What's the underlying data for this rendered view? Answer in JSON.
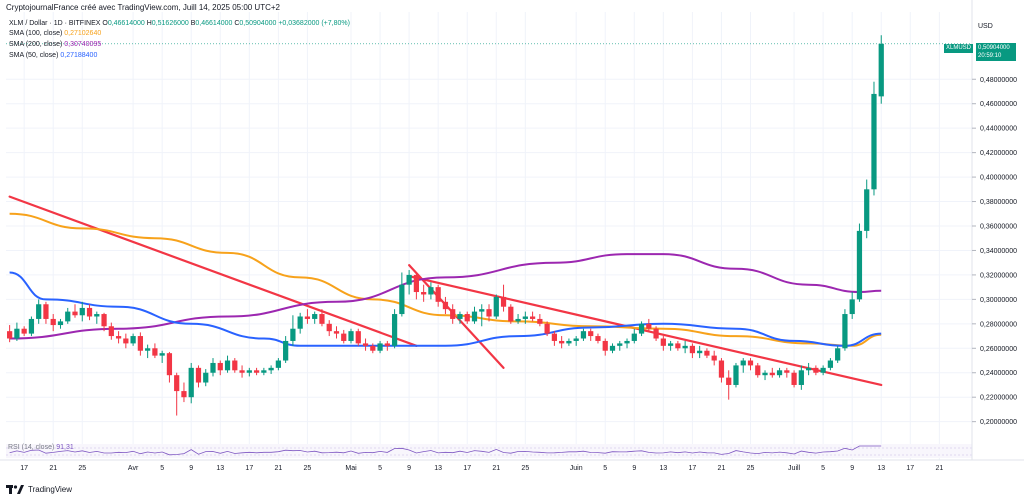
{
  "header": {
    "attribution": "CryptojournalFrance créé avec TradingView.com, Juill 14, 2025 05:00 UTC+2",
    "symbol_line": "XLM / Dollar · 1D · BITFINEX",
    "ohlc": [
      {
        "label": "O",
        "value": "0,46614000"
      },
      {
        "label": "H",
        "value": "0,51626000"
      },
      {
        "label": "B",
        "value": "0,46614000"
      },
      {
        "label": "C",
        "value": "0,50904000"
      },
      {
        "label": "",
        "value": "+0,03682000 (+7,80%)"
      }
    ]
  },
  "indicators": [
    {
      "label": "SMA (100, close)",
      "value": "0,27102640",
      "color": "#f7a21b"
    },
    {
      "label": "SMA (200, close)",
      "value": "0,30740095",
      "color": "#9c27b0"
    },
    {
      "label": "SMA (50, close)",
      "value": "0,27188400",
      "color": "#2962ff"
    }
  ],
  "rsi": {
    "label": "RSI (14, close)",
    "value": "91,31"
  },
  "price_axis": {
    "currency": "USD",
    "symbol_badge": "XLMUSD",
    "last_price": "0,50904000",
    "countdown": "20:59:10"
  },
  "branding": {
    "logo_text": "TradingView"
  },
  "colors": {
    "up": "#089981",
    "down": "#f23645",
    "trendline": "#f23645",
    "grid": "#f0f3fa"
  },
  "chart_data": {
    "type": "candlestick",
    "y_ticks": [
      "0,20000000",
      "0,22000000",
      "0,24000000",
      "0,26000000",
      "0,28000000",
      "0,30000000",
      "0,32000000",
      "0,34000000",
      "0,36000000",
      "0,38000000",
      "0,40000000",
      "0,42000000",
      "0,44000000",
      "0,46000000",
      "0,48000000"
    ],
    "ylim": [
      0.185,
      0.535
    ],
    "x_ticks": [
      "17",
      "21",
      "25",
      "Avr",
      "5",
      "9",
      "13",
      "17",
      "21",
      "25",
      "Mai",
      "5",
      "9",
      "13",
      "17",
      "21",
      "25",
      "Juin",
      "5",
      "9",
      "13",
      "17",
      "21",
      "25",
      "Juill",
      "5",
      "9",
      "13",
      "17",
      "21"
    ],
    "x_range": [
      "2025-03-15",
      "2025-07-23"
    ],
    "candles": [
      [
        "2025-03-15",
        0.274,
        0.279,
        0.265,
        0.268
      ],
      [
        "2025-03-16",
        0.268,
        0.281,
        0.266,
        0.276
      ],
      [
        "2025-03-17",
        0.276,
        0.278,
        0.27,
        0.272
      ],
      [
        "2025-03-18",
        0.272,
        0.286,
        0.27,
        0.284
      ],
      [
        "2025-03-19",
        0.284,
        0.3,
        0.28,
        0.296
      ],
      [
        "2025-03-20",
        0.296,
        0.298,
        0.28,
        0.284
      ],
      [
        "2025-03-21",
        0.284,
        0.288,
        0.274,
        0.279
      ],
      [
        "2025-03-22",
        0.279,
        0.284,
        0.276,
        0.282
      ],
      [
        "2025-03-23",
        0.282,
        0.293,
        0.28,
        0.29
      ],
      [
        "2025-03-24",
        0.29,
        0.296,
        0.285,
        0.287
      ],
      [
        "2025-03-25",
        0.287,
        0.298,
        0.282,
        0.293
      ],
      [
        "2025-03-26",
        0.293,
        0.296,
        0.283,
        0.286
      ],
      [
        "2025-03-27",
        0.286,
        0.29,
        0.28,
        0.288
      ],
      [
        "2025-03-28",
        0.288,
        0.289,
        0.274,
        0.278
      ],
      [
        "2025-03-29",
        0.278,
        0.281,
        0.267,
        0.27
      ],
      [
        "2025-03-30",
        0.27,
        0.274,
        0.264,
        0.268
      ],
      [
        "2025-03-31",
        0.268,
        0.272,
        0.26,
        0.264
      ],
      [
        "2025-04-01",
        0.264,
        0.272,
        0.262,
        0.27
      ],
      [
        "2025-04-02",
        0.27,
        0.273,
        0.254,
        0.258
      ],
      [
        "2025-04-03",
        0.258,
        0.263,
        0.252,
        0.26
      ],
      [
        "2025-04-04",
        0.26,
        0.264,
        0.252,
        0.254
      ],
      [
        "2025-04-05",
        0.254,
        0.258,
        0.248,
        0.256
      ],
      [
        "2025-04-06",
        0.256,
        0.257,
        0.232,
        0.238
      ],
      [
        "2025-04-07",
        0.238,
        0.24,
        0.205,
        0.225
      ],
      [
        "2025-04-08",
        0.225,
        0.232,
        0.216,
        0.22
      ],
      [
        "2025-04-09",
        0.22,
        0.248,
        0.215,
        0.244
      ],
      [
        "2025-04-10",
        0.244,
        0.246,
        0.228,
        0.232
      ],
      [
        "2025-04-11",
        0.232,
        0.243,
        0.229,
        0.24
      ],
      [
        "2025-04-12",
        0.24,
        0.252,
        0.237,
        0.248
      ],
      [
        "2025-04-13",
        0.248,
        0.25,
        0.238,
        0.242
      ],
      [
        "2025-04-14",
        0.242,
        0.254,
        0.24,
        0.25
      ],
      [
        "2025-04-15",
        0.25,
        0.252,
        0.24,
        0.242
      ],
      [
        "2025-04-16",
        0.242,
        0.246,
        0.236,
        0.24
      ],
      [
        "2025-04-17",
        0.24,
        0.244,
        0.237,
        0.242
      ],
      [
        "2025-04-18",
        0.242,
        0.244,
        0.238,
        0.24
      ],
      [
        "2025-04-19",
        0.24,
        0.244,
        0.238,
        0.242
      ],
      [
        "2025-04-20",
        0.242,
        0.246,
        0.239,
        0.244
      ],
      [
        "2025-04-21",
        0.244,
        0.252,
        0.242,
        0.25
      ],
      [
        "2025-04-22",
        0.25,
        0.27,
        0.248,
        0.266
      ],
      [
        "2025-04-23",
        0.266,
        0.287,
        0.262,
        0.276
      ],
      [
        "2025-04-24",
        0.276,
        0.289,
        0.272,
        0.286
      ],
      [
        "2025-04-25",
        0.286,
        0.292,
        0.28,
        0.284
      ],
      [
        "2025-04-26",
        0.284,
        0.29,
        0.28,
        0.288
      ],
      [
        "2025-04-27",
        0.288,
        0.292,
        0.278,
        0.28
      ],
      [
        "2025-04-28",
        0.28,
        0.283,
        0.27,
        0.274
      ],
      [
        "2025-04-29",
        0.274,
        0.278,
        0.268,
        0.272
      ],
      [
        "2025-04-30",
        0.272,
        0.275,
        0.264,
        0.266
      ],
      [
        "2025-05-01",
        0.266,
        0.276,
        0.264,
        0.274
      ],
      [
        "2025-05-02",
        0.274,
        0.276,
        0.262,
        0.264
      ],
      [
        "2025-05-03",
        0.264,
        0.268,
        0.258,
        0.262
      ],
      [
        "2025-05-04",
        0.262,
        0.264,
        0.256,
        0.258
      ],
      [
        "2025-05-05",
        0.258,
        0.266,
        0.256,
        0.264
      ],
      [
        "2025-05-06",
        0.264,
        0.266,
        0.258,
        0.262
      ],
      [
        "2025-05-07",
        0.262,
        0.292,
        0.26,
        0.288
      ],
      [
        "2025-05-08",
        0.288,
        0.322,
        0.286,
        0.312
      ],
      [
        "2025-05-09",
        0.312,
        0.324,
        0.304,
        0.32
      ],
      [
        "2025-05-10",
        0.32,
        0.322,
        0.3,
        0.306
      ],
      [
        "2025-05-11",
        0.306,
        0.312,
        0.298,
        0.304
      ],
      [
        "2025-05-12",
        0.304,
        0.314,
        0.3,
        0.31
      ],
      [
        "2025-05-13",
        0.31,
        0.312,
        0.294,
        0.298
      ],
      [
        "2025-05-14",
        0.298,
        0.302,
        0.288,
        0.292
      ],
      [
        "2025-05-15",
        0.292,
        0.296,
        0.28,
        0.284
      ],
      [
        "2025-05-16",
        0.284,
        0.29,
        0.28,
        0.288
      ],
      [
        "2025-05-17",
        0.288,
        0.29,
        0.28,
        0.282
      ],
      [
        "2025-05-18",
        0.282,
        0.294,
        0.28,
        0.29
      ],
      [
        "2025-05-19",
        0.29,
        0.296,
        0.278,
        0.292
      ],
      [
        "2025-05-20",
        0.292,
        0.296,
        0.282,
        0.286
      ],
      [
        "2025-05-21",
        0.286,
        0.304,
        0.284,
        0.302
      ],
      [
        "2025-05-22",
        0.302,
        0.312,
        0.29,
        0.294
      ],
      [
        "2025-05-23",
        0.294,
        0.296,
        0.28,
        0.282
      ],
      [
        "2025-05-24",
        0.282,
        0.288,
        0.28,
        0.284
      ],
      [
        "2025-05-25",
        0.284,
        0.29,
        0.28,
        0.286
      ],
      [
        "2025-05-26",
        0.286,
        0.29,
        0.282,
        0.284
      ],
      [
        "2025-05-27",
        0.284,
        0.288,
        0.278,
        0.28
      ],
      [
        "2025-05-28",
        0.28,
        0.282,
        0.27,
        0.272
      ],
      [
        "2025-05-29",
        0.272,
        0.274,
        0.262,
        0.266
      ],
      [
        "2025-05-30",
        0.266,
        0.27,
        0.26,
        0.264
      ],
      [
        "2025-05-31",
        0.264,
        0.268,
        0.262,
        0.266
      ],
      [
        "2025-06-01",
        0.266,
        0.27,
        0.262,
        0.268
      ],
      [
        "2025-06-02",
        0.268,
        0.276,
        0.266,
        0.274
      ],
      [
        "2025-06-03",
        0.274,
        0.276,
        0.266,
        0.27
      ],
      [
        "2025-06-04",
        0.27,
        0.272,
        0.264,
        0.266
      ],
      [
        "2025-06-05",
        0.266,
        0.268,
        0.254,
        0.258
      ],
      [
        "2025-06-06",
        0.258,
        0.264,
        0.256,
        0.262
      ],
      [
        "2025-06-07",
        0.262,
        0.266,
        0.258,
        0.264
      ],
      [
        "2025-06-08",
        0.264,
        0.268,
        0.26,
        0.266
      ],
      [
        "2025-06-09",
        0.266,
        0.276,
        0.264,
        0.272
      ],
      [
        "2025-06-10",
        0.272,
        0.282,
        0.27,
        0.28
      ],
      [
        "2025-06-11",
        0.28,
        0.284,
        0.274,
        0.276
      ],
      [
        "2025-06-12",
        0.276,
        0.278,
        0.266,
        0.268
      ],
      [
        "2025-06-13",
        0.268,
        0.27,
        0.258,
        0.262
      ],
      [
        "2025-06-14",
        0.262,
        0.266,
        0.258,
        0.264
      ],
      [
        "2025-06-15",
        0.264,
        0.266,
        0.258,
        0.26
      ],
      [
        "2025-06-16",
        0.26,
        0.266,
        0.256,
        0.262
      ],
      [
        "2025-06-17",
        0.262,
        0.264,
        0.252,
        0.256
      ],
      [
        "2025-06-18",
        0.256,
        0.262,
        0.252,
        0.258
      ],
      [
        "2025-06-19",
        0.258,
        0.26,
        0.252,
        0.254
      ],
      [
        "2025-06-20",
        0.254,
        0.258,
        0.246,
        0.25
      ],
      [
        "2025-06-21",
        0.25,
        0.252,
        0.232,
        0.236
      ],
      [
        "2025-06-22",
        0.236,
        0.242,
        0.218,
        0.23
      ],
      [
        "2025-06-23",
        0.23,
        0.248,
        0.228,
        0.246
      ],
      [
        "2025-06-24",
        0.246,
        0.252,
        0.24,
        0.25
      ],
      [
        "2025-06-25",
        0.25,
        0.252,
        0.242,
        0.246
      ],
      [
        "2025-06-26",
        0.246,
        0.248,
        0.236,
        0.238
      ],
      [
        "2025-06-27",
        0.238,
        0.242,
        0.234,
        0.24
      ],
      [
        "2025-06-28",
        0.24,
        0.244,
        0.236,
        0.238
      ],
      [
        "2025-06-29",
        0.238,
        0.244,
        0.236,
        0.242
      ],
      [
        "2025-06-30",
        0.242,
        0.244,
        0.236,
        0.24
      ],
      [
        "2025-07-01",
        0.24,
        0.242,
        0.228,
        0.23
      ],
      [
        "2025-07-02",
        0.23,
        0.246,
        0.226,
        0.242
      ],
      [
        "2025-07-03",
        0.242,
        0.248,
        0.238,
        0.244
      ],
      [
        "2025-07-04",
        0.244,
        0.246,
        0.238,
        0.24
      ],
      [
        "2025-07-05",
        0.24,
        0.246,
        0.238,
        0.244
      ],
      [
        "2025-07-06",
        0.244,
        0.252,
        0.242,
        0.25
      ],
      [
        "2025-07-07",
        0.25,
        0.262,
        0.248,
        0.26
      ],
      [
        "2025-07-08",
        0.26,
        0.292,
        0.258,
        0.288
      ],
      [
        "2025-07-09",
        0.288,
        0.306,
        0.284,
        0.3
      ],
      [
        "2025-07-10",
        0.3,
        0.362,
        0.298,
        0.356
      ],
      [
        "2025-07-11",
        0.356,
        0.398,
        0.35,
        0.39
      ],
      [
        "2025-07-12",
        0.39,
        0.478,
        0.385,
        0.468
      ],
      [
        "2025-07-13",
        0.466,
        0.516,
        0.46,
        0.509
      ]
    ],
    "sma_series": [
      {
        "name": "SMA (100, close)",
        "color": "#f7a21b",
        "points": [
          [
            "2025-03-15",
            0.37
          ],
          [
            "2025-03-25",
            0.358
          ],
          [
            "2025-04-04",
            0.35
          ],
          [
            "2025-04-14",
            0.338
          ],
          [
            "2025-04-24",
            0.318
          ],
          [
            "2025-05-04",
            0.3
          ],
          [
            "2025-05-14",
            0.287
          ],
          [
            "2025-05-24",
            0.282
          ],
          [
            "2025-06-03",
            0.278
          ],
          [
            "2025-06-13",
            0.276
          ],
          [
            "2025-06-23",
            0.27
          ],
          [
            "2025-07-03",
            0.264
          ],
          [
            "2025-07-09",
            0.262
          ],
          [
            "2025-07-13",
            0.271
          ]
        ]
      },
      {
        "name": "SMA (200, close)",
        "color": "#9c27b0",
        "points": [
          [
            "2025-03-15",
            0.268
          ],
          [
            "2025-03-30",
            0.276
          ],
          [
            "2025-04-14",
            0.286
          ],
          [
            "2025-04-29",
            0.298
          ],
          [
            "2025-05-14",
            0.318
          ],
          [
            "2025-05-29",
            0.33
          ],
          [
            "2025-06-08",
            0.337
          ],
          [
            "2025-06-13",
            0.337
          ],
          [
            "2025-06-23",
            0.325
          ],
          [
            "2025-07-03",
            0.312
          ],
          [
            "2025-07-10",
            0.306
          ],
          [
            "2025-07-13",
            0.307
          ]
        ]
      },
      {
        "name": "SMA (50, close)",
        "color": "#2962ff",
        "points": [
          [
            "2025-03-15",
            0.322
          ],
          [
            "2025-03-20",
            0.3
          ],
          [
            "2025-03-30",
            0.294
          ],
          [
            "2025-04-09",
            0.28
          ],
          [
            "2025-04-19",
            0.268
          ],
          [
            "2025-04-24",
            0.262
          ],
          [
            "2025-05-04",
            0.262
          ],
          [
            "2025-05-14",
            0.262
          ],
          [
            "2025-05-24",
            0.27
          ],
          [
            "2025-06-03",
            0.277
          ],
          [
            "2025-06-13",
            0.28
          ],
          [
            "2025-06-23",
            0.276
          ],
          [
            "2025-07-01",
            0.266
          ],
          [
            "2025-07-08",
            0.262
          ],
          [
            "2025-07-13",
            0.272
          ]
        ]
      }
    ],
    "trendlines": [
      {
        "from": [
          "2025-03-15",
          0.384
        ],
        "to": [
          "2025-05-10",
          0.262
        ]
      },
      {
        "from": [
          "2025-05-09",
          0.328
        ],
        "to": [
          "2025-05-22",
          0.244
        ]
      },
      {
        "from": [
          "2025-05-09",
          0.319
        ],
        "to": [
          "2025-07-13",
          0.23
        ]
      }
    ],
    "grid": true
  }
}
